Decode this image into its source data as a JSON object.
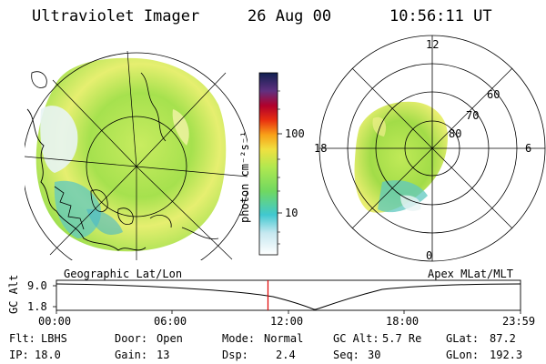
{
  "header": {
    "instrument": "Ultraviolet Imager",
    "date": "26 Aug 00",
    "time": "10:56:11 UT"
  },
  "colorbar": {
    "unit_label": "photon cm⁻²s⁻¹",
    "ticks": [
      "100",
      "10"
    ]
  },
  "left_map": {
    "caption": "Geographic Lat/Lon"
  },
  "right_map": {
    "caption": "Apex MLat/MLT",
    "mlt_labels": [
      "12",
      "18",
      "6",
      "0"
    ],
    "mlat_labels": [
      "60",
      "70",
      "80"
    ]
  },
  "altitude_plot": {
    "ylabel": "GC Alt",
    "yticks": [
      "9.0",
      "1.8"
    ],
    "xticks": [
      "00:00",
      "06:00",
      "12:00",
      "18:00",
      "23:59"
    ],
    "current_time_hours": 10.94
  },
  "info": {
    "filter": {
      "label": "Flt:",
      "value": "LBHS"
    },
    "ip": {
      "label": "IP:",
      "value": "18.0"
    },
    "door": {
      "label": "Door:",
      "value": "Open"
    },
    "gain": {
      "label": "Gain:",
      "value": "13"
    },
    "mode": {
      "label": "Mode:",
      "value": "Normal"
    },
    "dsp": {
      "label": "Dsp:",
      "value": "2.4"
    },
    "gc_alt": {
      "label": "GC Alt:",
      "value": "5.7 Re"
    },
    "seq": {
      "label": "Seq:",
      "value": "30"
    },
    "glat": {
      "label": "GLat:",
      "value": "87.2"
    },
    "glon": {
      "label": "GLon:",
      "value": "192.3"
    }
  },
  "colors": {
    "aurora_green": "#9ee04a",
    "aurora_yellow": "#e8f06a",
    "aurora_cyan": "#5fd0c0",
    "marker_red": "#e00000"
  }
}
